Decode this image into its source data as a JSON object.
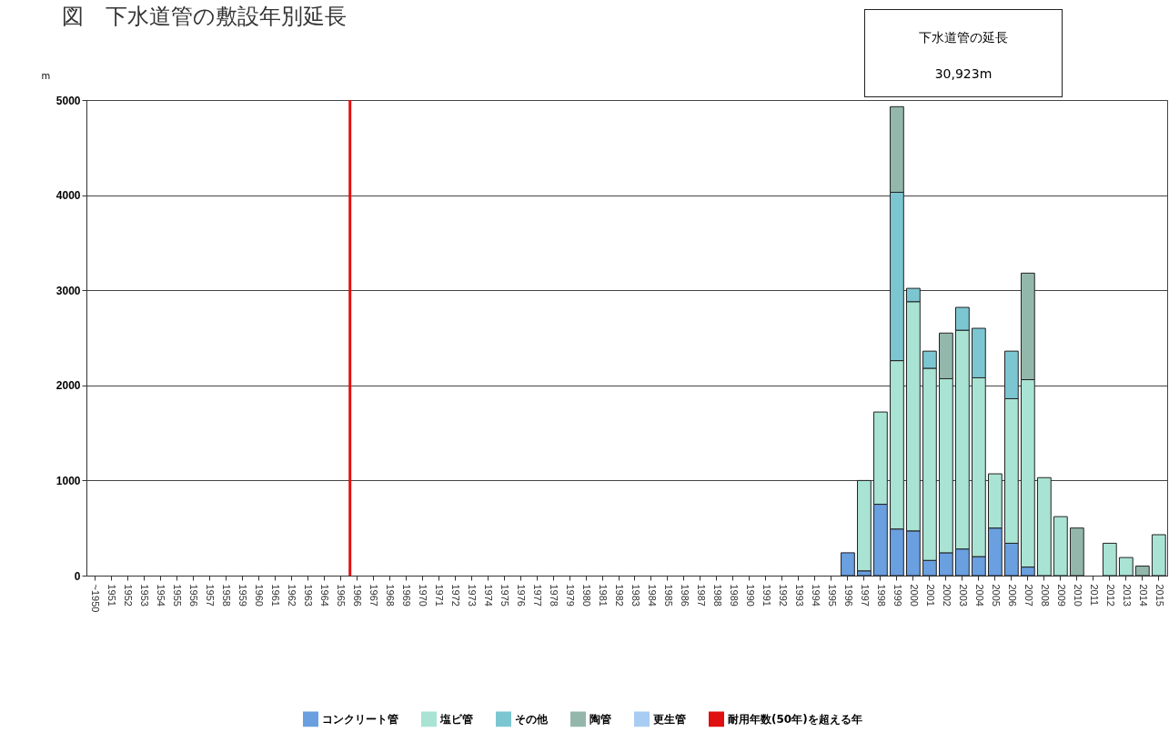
{
  "chart_data": {
    "type": "bar",
    "title": "図　下水道管の敷設年別延長",
    "ylabel": "m",
    "categories": [
      "~1950",
      "1951",
      "1952",
      "1953",
      "1954",
      "1955",
      "1956",
      "1957",
      "1958",
      "1959",
      "1960",
      "1961",
      "1962",
      "1963",
      "1964",
      "1965",
      "1966",
      "1967",
      "1968",
      "1969",
      "1970",
      "1971",
      "1972",
      "1973",
      "1974",
      "1975",
      "1976",
      "1977",
      "1978",
      "1979",
      "1980",
      "1981",
      "1982",
      "1983",
      "1984",
      "1985",
      "1986",
      "1987",
      "1988",
      "1989",
      "1990",
      "1991",
      "1992",
      "1993",
      "1994",
      "1995",
      "1996",
      "1997",
      "1998",
      "1999",
      "2000",
      "2001",
      "2002",
      "2003",
      "2004",
      "2005",
      "2006",
      "2007",
      "2008",
      "2009",
      "2010",
      "2011",
      "2012",
      "2013",
      "2014",
      "2015"
    ],
    "stacked": true,
    "series": [
      {
        "name": "コンクリート管",
        "color": "#6a9fe0",
        "values": [
          null,
          null,
          null,
          null,
          null,
          null,
          null,
          null,
          null,
          null,
          null,
          null,
          null,
          null,
          null,
          null,
          null,
          null,
          null,
          null,
          null,
          null,
          null,
          null,
          null,
          null,
          null,
          null,
          null,
          null,
          null,
          null,
          null,
          null,
          null,
          null,
          null,
          null,
          null,
          null,
          null,
          null,
          null,
          null,
          null,
          null,
          240,
          50,
          750,
          490,
          470,
          160,
          240,
          280,
          200,
          500,
          340,
          90,
          null,
          null,
          null,
          null,
          null,
          null,
          null,
          null
        ]
      },
      {
        "name": "塩ビ管",
        "color": "#a9e3d3",
        "values": [
          null,
          null,
          null,
          null,
          null,
          null,
          null,
          null,
          null,
          null,
          null,
          null,
          null,
          null,
          null,
          null,
          null,
          null,
          null,
          null,
          null,
          null,
          null,
          null,
          null,
          null,
          null,
          null,
          null,
          null,
          null,
          null,
          null,
          null,
          null,
          null,
          null,
          null,
          null,
          null,
          null,
          null,
          null,
          null,
          null,
          null,
          null,
          950,
          970,
          1770,
          2410,
          2020,
          1830,
          2300,
          1880,
          570,
          1520,
          1970,
          1030,
          620,
          null,
          null,
          340,
          190,
          null,
          430
        ]
      },
      {
        "name": "その他",
        "color": "#7cc6d2",
        "values": [
          null,
          null,
          null,
          null,
          null,
          null,
          null,
          null,
          null,
          null,
          null,
          null,
          null,
          null,
          null,
          null,
          null,
          null,
          null,
          null,
          null,
          null,
          null,
          null,
          null,
          null,
          null,
          null,
          null,
          null,
          null,
          null,
          null,
          null,
          null,
          null,
          null,
          null,
          null,
          null,
          null,
          null,
          null,
          null,
          null,
          null,
          null,
          null,
          null,
          1770,
          140,
          180,
          null,
          240,
          520,
          null,
          500,
          null,
          null,
          null,
          null,
          null,
          null,
          null,
          null,
          null
        ]
      },
      {
        "name": "陶管",
        "color": "#93b8ab",
        "values": [
          null,
          null,
          null,
          null,
          null,
          null,
          null,
          null,
          null,
          null,
          null,
          null,
          null,
          null,
          null,
          null,
          null,
          null,
          null,
          null,
          null,
          null,
          null,
          null,
          null,
          null,
          null,
          null,
          null,
          null,
          null,
          null,
          null,
          null,
          null,
          null,
          null,
          null,
          null,
          null,
          null,
          null,
          null,
          null,
          null,
          null,
          null,
          null,
          null,
          900,
          null,
          null,
          480,
          null,
          null,
          null,
          null,
          1120,
          null,
          null,
          500,
          null,
          null,
          null,
          100,
          null
        ]
      },
      {
        "name": "更生管",
        "color": "#a9cdf2",
        "values": [
          null,
          null,
          null,
          null,
          null,
          null,
          null,
          null,
          null,
          null,
          null,
          null,
          null,
          null,
          null,
          null,
          null,
          null,
          null,
          null,
          null,
          null,
          null,
          null,
          null,
          null,
          null,
          null,
          null,
          null,
          null,
          null,
          null,
          null,
          null,
          null,
          null,
          null,
          null,
          null,
          null,
          null,
          null,
          null,
          null,
          null,
          null,
          null,
          null,
          null,
          null,
          null,
          null,
          null,
          null,
          null,
          null,
          null,
          null,
          null,
          null,
          null,
          null,
          null,
          null,
          null
        ]
      }
    ],
    "ylim": [
      0,
      5000
    ],
    "yticks": [
      0,
      1000,
      2000,
      3000,
      4000,
      5000
    ],
    "grid": "y",
    "legend": "bottom",
    "ref_lines": [
      {
        "axis": "x",
        "value": "1966",
        "label": "耐用年数(50年)を超える年",
        "color": "#e01010"
      }
    ],
    "annotations": [
      "下水道管の延長",
      "30,923m"
    ]
  }
}
